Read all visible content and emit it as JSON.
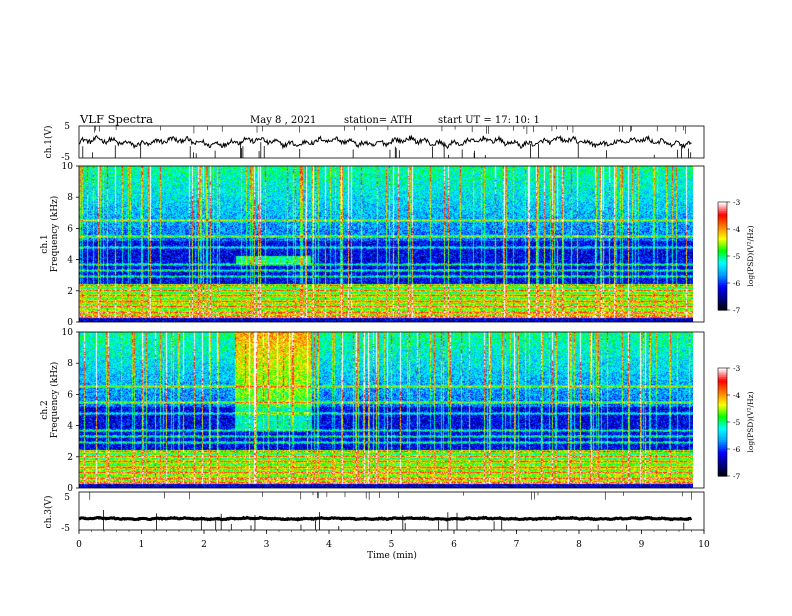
{
  "header": {
    "title": "VLF  Spectra",
    "date": "May 8  , 2021",
    "station": "station= ATH",
    "start": "start  UT  =    17: 10: 1"
  },
  "chart_data": {
    "type": "heatmap",
    "x_axis": {
      "label": "Time  (min)",
      "range": [
        0,
        10
      ],
      "ticks": [
        "0",
        "1",
        "2",
        "3",
        "4",
        "5",
        "6",
        "7",
        "8",
        "9",
        "10"
      ],
      "data_end_min": 9.8
    },
    "panels": [
      {
        "id": "ch1-waveform",
        "type": "line",
        "ylabel": "ch.1(V)",
        "yticks": [
          "5",
          "-5"
        ],
        "ylim": [
          -5,
          5
        ],
        "baseline": 0.0,
        "color": "#000000"
      },
      {
        "id": "ch1-spectrogram",
        "type": "heatmap",
        "ylabel_top": "ch.1",
        "ylabel": "Frequency  (kHz)",
        "ylim": [
          0,
          10
        ],
        "yticks": [
          "0",
          "2",
          "4",
          "6",
          "8",
          "10"
        ],
        "bands_khz": [
          0.3,
          0.6,
          1.0,
          1.3,
          1.7,
          2.0,
          2.3,
          2.9,
          3.3,
          3.7,
          4.8,
          5.5,
          6.5
        ],
        "enhanced_region": {
          "t_min": [
            2.5,
            3.7
          ],
          "f_khz": [
            3.7,
            4.2
          ]
        }
      },
      {
        "id": "ch2-spectrogram",
        "type": "heatmap",
        "ylabel_top": "ch.2",
        "ylabel": "Frequency  (kHz)",
        "ylim": [
          0,
          10
        ],
        "yticks": [
          "0",
          "2",
          "4",
          "6",
          "8",
          "10"
        ],
        "bands_khz": [
          0.3,
          0.6,
          1.0,
          1.3,
          1.7,
          2.0,
          2.3,
          2.9,
          3.3,
          3.7,
          4.8,
          5.5,
          6.5
        ],
        "enhanced_region": {
          "t_min": [
            2.5,
            3.7
          ],
          "f_khz": [
            3.7,
            10
          ]
        }
      },
      {
        "id": "ch3-waveform",
        "type": "line",
        "ylabel": "ch.3(V)",
        "yticks": [
          "5",
          "-5"
        ],
        "ylim": [
          -5,
          5
        ],
        "baseline": -2.0,
        "color": "#000000"
      }
    ],
    "colorbar": {
      "label": "log(PSD)(V²/Hz)",
      "range": [
        -7,
        -3
      ],
      "ticks": [
        "-3",
        "-4",
        "-5",
        "-6",
        "-7"
      ],
      "colors": [
        "#000000",
        "#000080",
        "#0000ff",
        "#00a0ff",
        "#00ffff",
        "#00ff00",
        "#ffff00",
        "#ff8000",
        "#ff0000",
        "#ffffff"
      ]
    }
  }
}
